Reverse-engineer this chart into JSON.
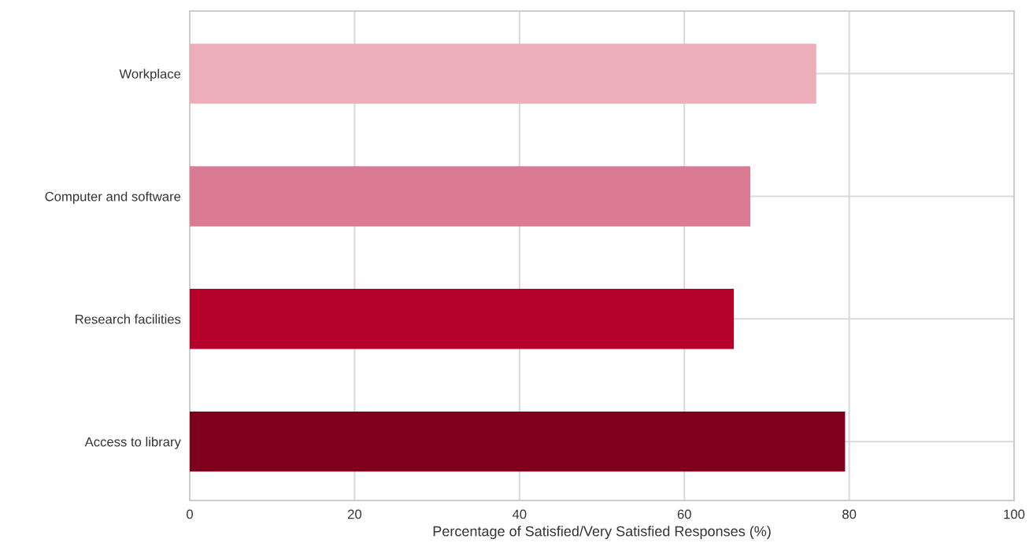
{
  "chart_data": {
    "type": "bar",
    "orientation": "horizontal",
    "xlabel": "Percentage of Satisfied/Very Satisfied Responses (%)",
    "categories": [
      "Workplace",
      "Computer and software",
      "Research facilities",
      "Access to library"
    ],
    "values": [
      76,
      68,
      66,
      79.5
    ],
    "colors": [
      "#ecaebb",
      "#db7b93",
      "#b5002b",
      "#7e001c"
    ],
    "xlim": [
      0,
      100
    ],
    "xticks": [
      0,
      20,
      40,
      60,
      80,
      100
    ],
    "grid": true
  }
}
